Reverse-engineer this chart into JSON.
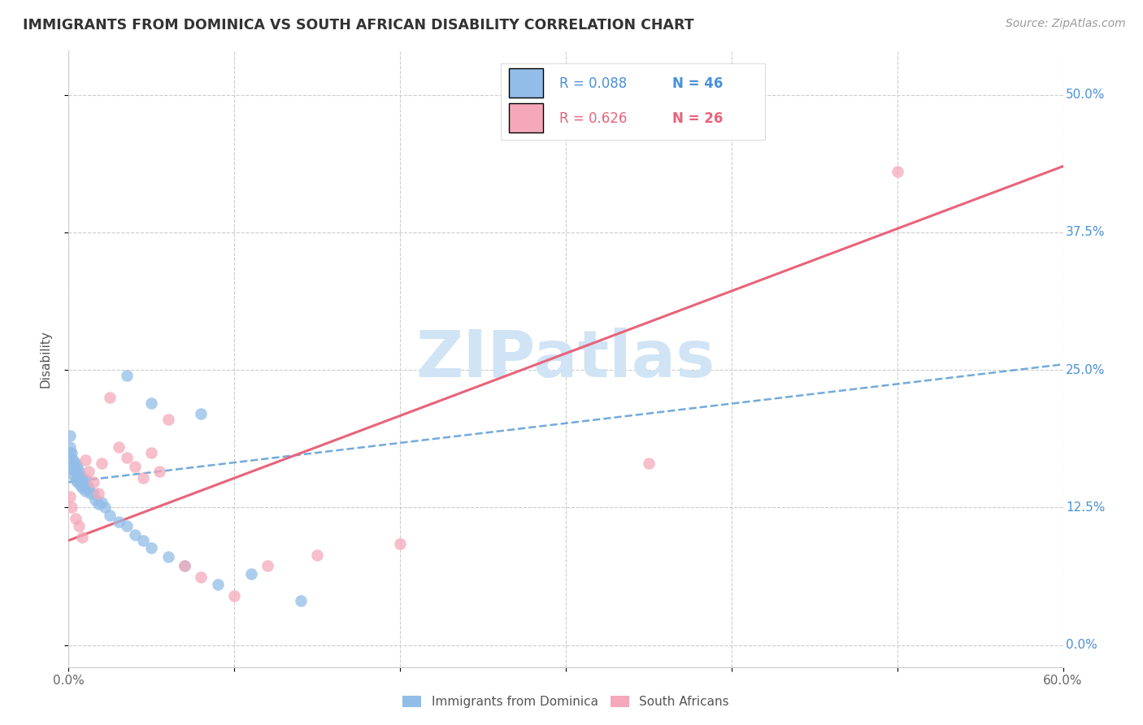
{
  "title": "IMMIGRANTS FROM DOMINICA VS SOUTH AFRICAN DISABILITY CORRELATION CHART",
  "source": "Source: ZipAtlas.com",
  "ylabel": "Disability",
  "xlim": [
    0.0,
    0.6
  ],
  "ylim": [
    -0.02,
    0.54
  ],
  "xticks": [
    0.0,
    0.1,
    0.2,
    0.3,
    0.4,
    0.5,
    0.6
  ],
  "xticklabels": [
    "0.0%",
    "",
    "",
    "",
    "",
    "",
    "60.0%"
  ],
  "ytick_vals": [
    0.0,
    0.125,
    0.25,
    0.375,
    0.5
  ],
  "yticklabels": [
    "0.0%",
    "12.5%",
    "25.0%",
    "37.5%",
    "50.0%"
  ],
  "blue_R": 0.088,
  "blue_N": 46,
  "pink_R": 0.626,
  "pink_N": 26,
  "blue_color": "#92bde8",
  "pink_color": "#f5a8ba",
  "blue_line_color": "#5b9bd5",
  "pink_line_color": "#e8637a",
  "watermark_color": "#d0e4f5",
  "blue_line_start_y": 0.148,
  "blue_line_end_y": 0.255,
  "pink_line_start_y": 0.095,
  "pink_line_end_y": 0.435,
  "blue_x": [
    0.001,
    0.001,
    0.001,
    0.002,
    0.002,
    0.002,
    0.003,
    0.003,
    0.003,
    0.004,
    0.004,
    0.004,
    0.005,
    0.005,
    0.005,
    0.006,
    0.006,
    0.007,
    0.007,
    0.008,
    0.008,
    0.009,
    0.01,
    0.01,
    0.011,
    0.012,
    0.013,
    0.015,
    0.016,
    0.018,
    0.02,
    0.022,
    0.025,
    0.03,
    0.035,
    0.04,
    0.045,
    0.05,
    0.06,
    0.07,
    0.09,
    0.035,
    0.05,
    0.08,
    0.11,
    0.14
  ],
  "blue_y": [
    0.19,
    0.18,
    0.175,
    0.175,
    0.168,
    0.16,
    0.168,
    0.162,
    0.155,
    0.165,
    0.158,
    0.15,
    0.162,
    0.155,
    0.148,
    0.158,
    0.15,
    0.155,
    0.145,
    0.152,
    0.143,
    0.148,
    0.15,
    0.14,
    0.145,
    0.142,
    0.138,
    0.138,
    0.132,
    0.128,
    0.13,
    0.125,
    0.118,
    0.112,
    0.108,
    0.1,
    0.095,
    0.088,
    0.08,
    0.072,
    0.055,
    0.245,
    0.22,
    0.21,
    0.065,
    0.04
  ],
  "pink_x": [
    0.001,
    0.002,
    0.004,
    0.006,
    0.008,
    0.01,
    0.012,
    0.015,
    0.018,
    0.02,
    0.025,
    0.03,
    0.035,
    0.04,
    0.045,
    0.05,
    0.055,
    0.06,
    0.07,
    0.08,
    0.1,
    0.12,
    0.15,
    0.2,
    0.35,
    0.5
  ],
  "pink_y": [
    0.135,
    0.125,
    0.115,
    0.108,
    0.098,
    0.168,
    0.158,
    0.148,
    0.138,
    0.165,
    0.225,
    0.18,
    0.17,
    0.162,
    0.152,
    0.175,
    0.158,
    0.205,
    0.072,
    0.062,
    0.045,
    0.072,
    0.082,
    0.092,
    0.165,
    0.43
  ]
}
